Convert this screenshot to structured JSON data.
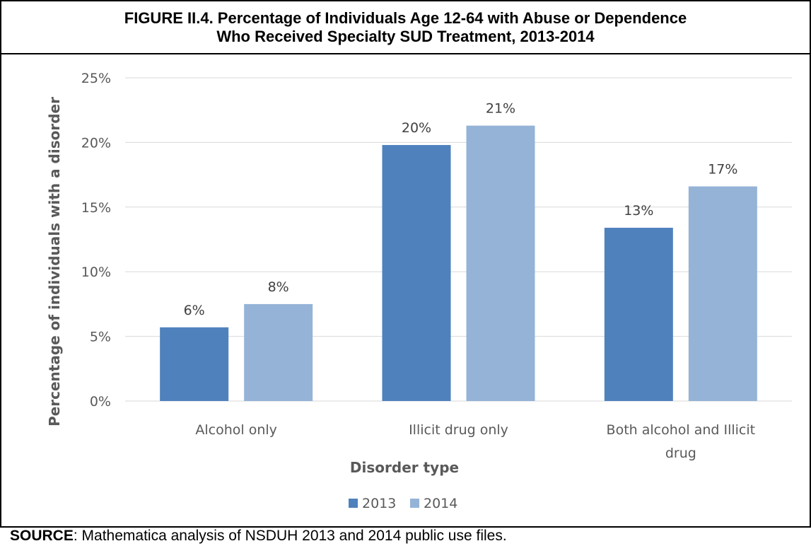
{
  "figure": {
    "title_line1": "FIGURE II.4. Percentage of Individuals Age 12-64 with Abuse or Dependence",
    "title_line2": "Who Received Specialty SUD Treatment, 2013-2014"
  },
  "source": {
    "label": "SOURCE",
    "text": ":  Mathematica analysis of NSDUH 2013 and 2014 public use files."
  },
  "chart_data": {
    "type": "bar",
    "categories": [
      "Alcohol only",
      "Illicit drug only",
      "Both alcohol and Illicit drug"
    ],
    "category_label_lines": [
      [
        "Alcohol only"
      ],
      [
        "Illicit drug only"
      ],
      [
        "Both alcohol and Illicit",
        "drug"
      ]
    ],
    "series": [
      {
        "name": "2013",
        "values": [
          5.7,
          19.8,
          13.4
        ],
        "labels": [
          "6%",
          "20%",
          "13%"
        ],
        "color": "#4f81bd"
      },
      {
        "name": "2014",
        "values": [
          7.5,
          21.3,
          16.6
        ],
        "labels": [
          "8%",
          "21%",
          "17%"
        ],
        "color": "#95b3d7"
      }
    ],
    "xlabel": "Disorder type",
    "ylabel": "Percentage of individuals with a disorder",
    "ylim": [
      0,
      25
    ],
    "yticks": [
      0,
      5,
      10,
      15,
      20,
      25
    ],
    "ytick_labels": [
      "0%",
      "5%",
      "10%",
      "15%",
      "20%",
      "25%"
    ],
    "grid": true,
    "legend_position": "bottom",
    "colors": {
      "gridline": "#d9d9d9",
      "text": "#595959"
    }
  }
}
